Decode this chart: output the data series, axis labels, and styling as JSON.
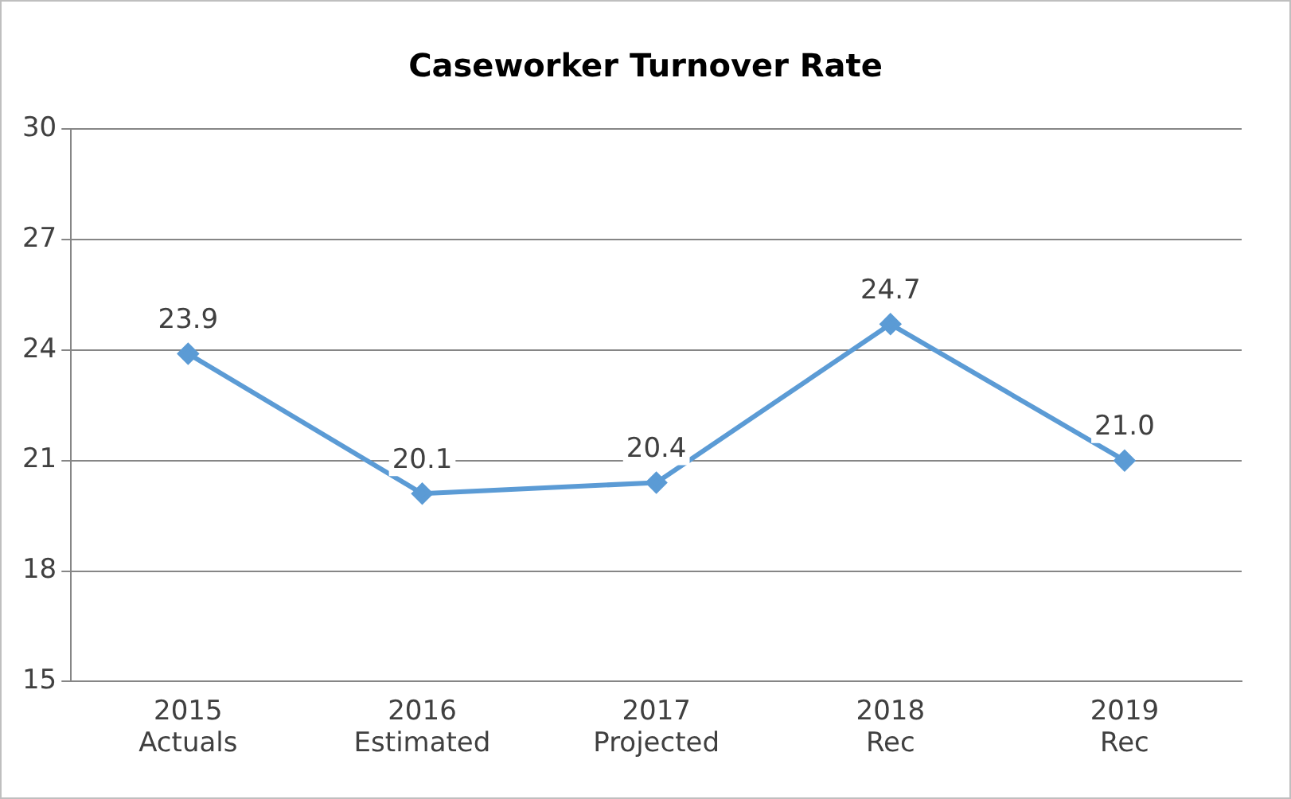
{
  "chart_data": {
    "type": "line",
    "title": "Caseworker Turnover Rate",
    "categories": [
      "2015 Actuals",
      "2016 Estimated",
      "2017 Projected",
      "2018 Rec",
      "2019 Rec"
    ],
    "series": [
      {
        "color": "#5b9bd5",
        "values": [
          23.9,
          20.1,
          20.4,
          24.7,
          21.0
        ],
        "value_labels": [
          "23.9",
          "20.1",
          "20.4",
          "24.7",
          "21.0"
        ]
      }
    ],
    "ylim": [
      15,
      30
    ],
    "yticks": [
      15,
      18,
      21,
      24,
      27,
      30
    ],
    "grid": "y",
    "legend": false,
    "marker": "diamond",
    "line_style": "solid"
  }
}
